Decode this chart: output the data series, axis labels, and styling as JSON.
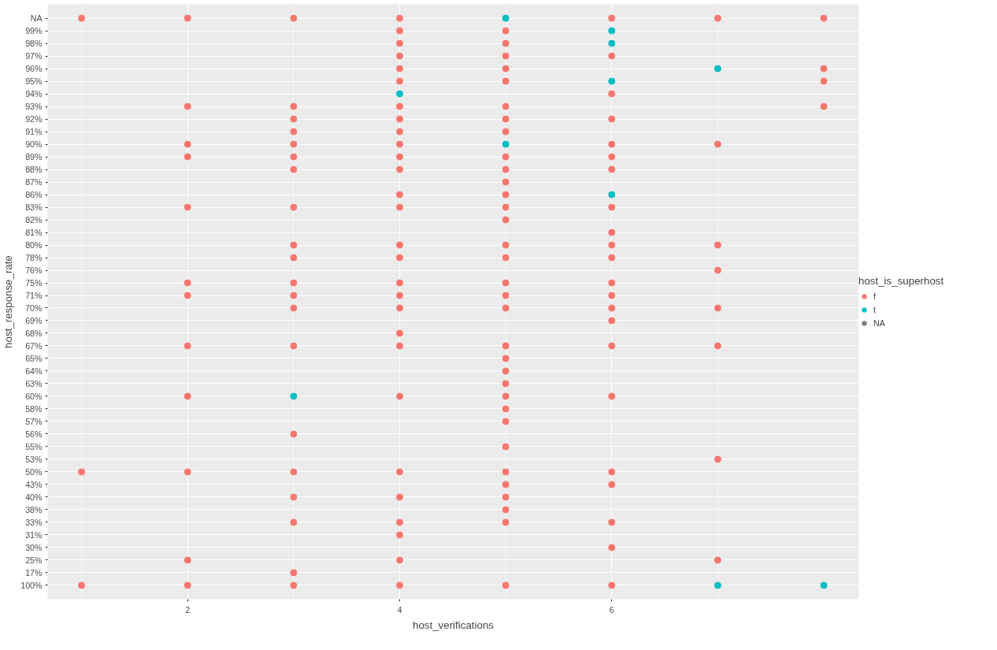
{
  "chart_data": {
    "type": "scatter",
    "orientation": "horizontal",
    "xlabel": "host_verifications",
    "ylabel": "host_response_rate",
    "legend_title": "host_is_superhost",
    "xlim": [
      0.68,
      8.33
    ],
    "xticks": [
      2,
      4,
      6
    ],
    "categories": [
      "NA",
      "99%",
      "98%",
      "97%",
      "96%",
      "95%",
      "94%",
      "93%",
      "92%",
      "91%",
      "90%",
      "89%",
      "88%",
      "87%",
      "86%",
      "83%",
      "82%",
      "81%",
      "80%",
      "78%",
      "76%",
      "75%",
      "71%",
      "70%",
      "69%",
      "68%",
      "67%",
      "65%",
      "64%",
      "63%",
      "60%",
      "58%",
      "57%",
      "56%",
      "55%",
      "53%",
      "50%",
      "43%",
      "40%",
      "38%",
      "33%",
      "31%",
      "30%",
      "25%",
      "17%",
      "100%"
    ],
    "grid": true,
    "legend": "right",
    "marker": "circle",
    "series": [
      {
        "name": "f",
        "color": "#f8766d",
        "x": [
          "NA",
          "50%",
          "100%",
          "NA",
          "93%",
          "90%",
          "89%",
          "83%",
          "75%",
          "71%",
          "67%",
          "60%",
          "50%",
          "25%",
          "100%",
          "NA",
          "93%",
          "92%",
          "91%",
          "90%",
          "89%",
          "88%",
          "83%",
          "80%",
          "78%",
          "75%",
          "71%",
          "70%",
          "67%",
          "56%",
          "50%",
          "40%",
          "33%",
          "17%",
          "100%",
          "NA",
          "99%",
          "98%",
          "97%",
          "96%",
          "95%",
          "93%",
          "92%",
          "91%",
          "90%",
          "89%",
          "88%",
          "86%",
          "83%",
          "80%",
          "78%",
          "75%",
          "71%",
          "70%",
          "68%",
          "67%",
          "60%",
          "50%",
          "40%",
          "33%",
          "31%",
          "25%",
          "100%",
          "99%",
          "98%",
          "97%",
          "96%",
          "95%",
          "93%",
          "92%",
          "91%",
          "89%",
          "88%",
          "87%",
          "86%",
          "83%",
          "82%",
          "80%",
          "78%",
          "75%",
          "71%",
          "70%",
          "67%",
          "65%",
          "64%",
          "63%",
          "60%",
          "58%",
          "57%",
          "55%",
          "50%",
          "43%",
          "40%",
          "38%",
          "33%",
          "100%",
          "NA",
          "97%",
          "94%",
          "92%",
          "90%",
          "89%",
          "88%",
          "83%",
          "81%",
          "80%",
          "78%",
          "75%",
          "71%",
          "70%",
          "69%",
          "67%",
          "60%",
          "50%",
          "43%",
          "33%",
          "30%",
          "100%",
          "NA",
          "90%",
          "80%",
          "76%",
          "70%",
          "67%",
          "53%",
          "25%",
          "NA",
          "96%",
          "95%",
          "93%"
        ],
        "values": [
          1,
          1,
          1,
          2,
          2,
          2,
          2,
          2,
          2,
          2,
          2,
          2,
          2,
          2,
          2,
          3,
          3,
          3,
          3,
          3,
          3,
          3,
          3,
          3,
          3,
          3,
          3,
          3,
          3,
          3,
          3,
          3,
          3,
          3,
          3,
          4,
          4,
          4,
          4,
          4,
          4,
          4,
          4,
          4,
          4,
          4,
          4,
          4,
          4,
          4,
          4,
          4,
          4,
          4,
          4,
          4,
          4,
          4,
          4,
          4,
          4,
          4,
          4,
          5,
          5,
          5,
          5,
          5,
          5,
          5,
          5,
          5,
          5,
          5,
          5,
          5,
          5,
          5,
          5,
          5,
          5,
          5,
          5,
          5,
          5,
          5,
          5,
          5,
          5,
          5,
          5,
          5,
          5,
          5,
          5,
          5,
          6,
          6,
          6,
          6,
          6,
          6,
          6,
          6,
          6,
          6,
          6,
          6,
          6,
          6,
          6,
          6,
          6,
          6,
          6,
          6,
          6,
          6,
          7,
          7,
          7,
          7,
          7,
          7,
          7,
          7,
          8,
          8,
          8,
          8
        ]
      },
      {
        "name": "t",
        "color": "#00bfc4",
        "x": [
          "60%",
          "94%",
          "NA",
          "90%",
          "99%",
          "98%",
          "95%",
          "86%",
          "96%",
          "100%",
          "100%"
        ],
        "values": [
          3,
          4,
          5,
          5,
          6,
          6,
          6,
          6,
          7,
          7,
          8
        ]
      },
      {
        "name": "NA",
        "color": "#7f7f7f",
        "values": [
          null,
          null,
          null,
          null,
          null,
          null,
          null,
          null,
          null,
          null,
          null,
          null,
          null,
          null,
          null,
          null,
          null,
          null,
          null,
          null,
          null,
          null,
          null,
          null,
          null,
          null,
          null,
          null,
          null,
          null,
          null,
          null,
          null,
          null,
          null,
          null,
          null,
          null,
          null,
          null,
          null,
          null,
          null,
          null,
          null,
          null
        ]
      }
    ]
  }
}
